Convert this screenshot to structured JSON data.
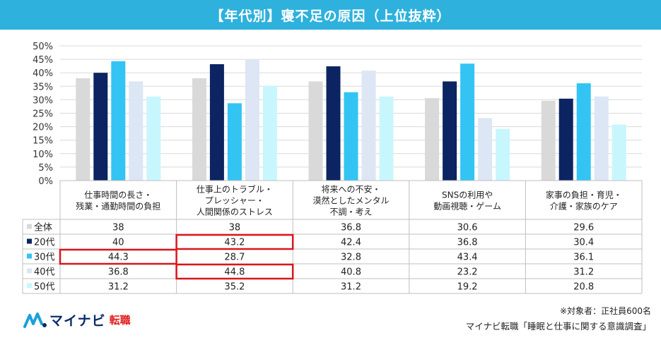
{
  "title": "【年代別】寝不足の原因（上位抜粋）",
  "chart_data": {
    "type": "bar",
    "categories": [
      [
        "仕事時間の長さ・",
        "残業・通勤時間の負担"
      ],
      [
        "仕事上のトラブル・",
        "プレッシャー・",
        "人間関係のストレス"
      ],
      [
        "将来への不安・",
        "漠然としたメンタル",
        "不調・考え"
      ],
      [
        "SNSの利用や",
        "動画視聴・ゲーム"
      ],
      [
        "家事の負担・育児・",
        "介護・家族のケア"
      ]
    ],
    "series": [
      {
        "name": "全体",
        "color": "#d9d9d9",
        "values": [
          38,
          38,
          36.8,
          30.6,
          29.6
        ]
      },
      {
        "name": "20代",
        "color": "#0c2461",
        "values": [
          40,
          43.2,
          42.4,
          36.8,
          30.4
        ]
      },
      {
        "name": "30代",
        "color": "#33c4f4",
        "values": [
          44.3,
          28.7,
          32.8,
          43.4,
          36.1
        ]
      },
      {
        "name": "40代",
        "color": "#dce6f4",
        "values": [
          36.8,
          44.8,
          40.8,
          23.2,
          31.2
        ]
      },
      {
        "name": "50代",
        "color": "#c8f6fd",
        "values": [
          31.2,
          35.2,
          31.2,
          19.2,
          20.8
        ]
      }
    ],
    "value_labels": [
      [
        "38",
        "38",
        "36.8",
        "30.6",
        "29.6"
      ],
      [
        "40",
        "43.2",
        "42.4",
        "36.8",
        "30.4"
      ],
      [
        "44.3",
        "28.7",
        "32.8",
        "43.4",
        "36.1"
      ],
      [
        "36.8",
        "44.8",
        "40.8",
        "23.2",
        "31.2"
      ],
      [
        "31.2",
        "35.2",
        "31.2",
        "19.2",
        "20.8"
      ]
    ],
    "ylim": [
      0,
      50
    ],
    "yticks": [
      0,
      5,
      10,
      15,
      20,
      25,
      30,
      35,
      40,
      45,
      50
    ],
    "ytick_suffix": "%",
    "grid": true,
    "legend": "table-left",
    "highlight_color": "#d9161c",
    "highlights": [
      {
        "series": 1,
        "category": 1
      },
      {
        "series": 2,
        "category": 0
      },
      {
        "series": 3,
        "category": 1
      }
    ]
  },
  "footer": {
    "logo_text": "マイナビ",
    "logo_sub": "転職",
    "note": "※対象者：正社員600名",
    "source": "マイナビ転職「睡眠と仕事に関する意識調査」"
  }
}
